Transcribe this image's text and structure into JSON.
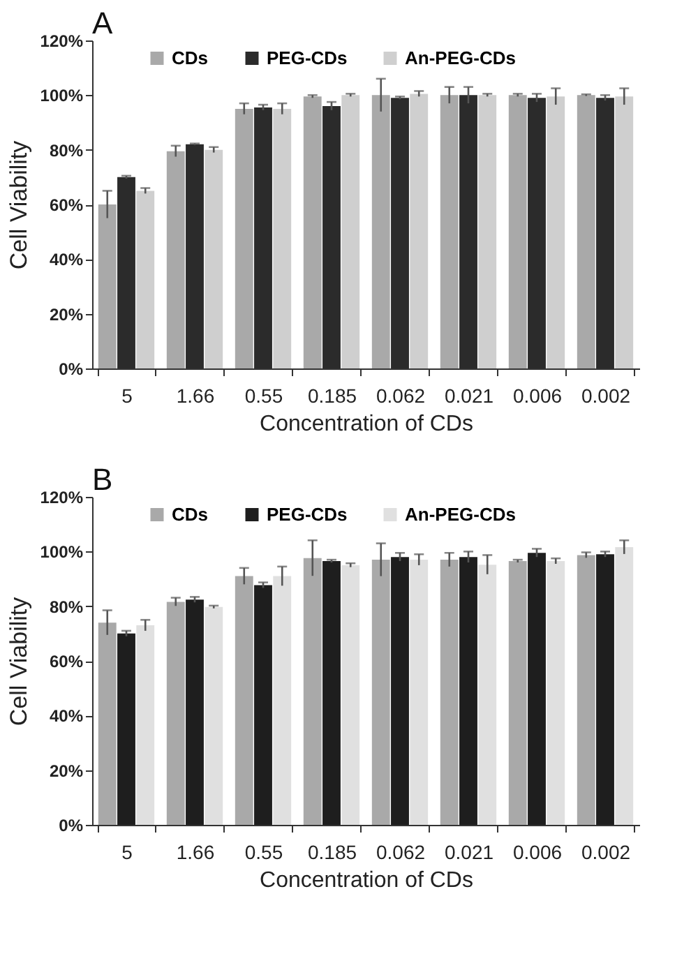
{
  "chart_data": [
    {
      "type": "bar",
      "title": "A",
      "xlabel": "Concentration of CDs",
      "ylabel": "Cell Viability",
      "categories": [
        "5",
        "1.66",
        "0.55",
        "0.185",
        "0.062",
        "0.021",
        "0.006",
        "0.002"
      ],
      "series": [
        {
          "name": "CDs",
          "color": "#a9a9a9",
          "values": [
            60,
            79.5,
            95,
            99.5,
            100,
            100,
            100,
            100
          ],
          "errors": [
            5,
            2,
            2,
            0.5,
            6,
            3,
            0.5,
            0.3
          ]
        },
        {
          "name": "PEG-CDs",
          "color": "#2b2b2b",
          "values": [
            70,
            82,
            95.5,
            96,
            99,
            100,
            99,
            99
          ],
          "errors": [
            0.5,
            0.3,
            1,
            1.5,
            0.5,
            3,
            1.5,
            1
          ]
        },
        {
          "name": "An-PEG-CDs",
          "color": "#cfcfcf",
          "values": [
            65,
            80,
            95,
            100,
            100.5,
            100,
            99.5,
            99.5
          ],
          "errors": [
            1,
            1,
            2,
            0.5,
            1,
            0.5,
            3,
            3
          ]
        }
      ],
      "ylim": [
        0,
        120
      ],
      "yticks": [
        {
          "value": 0,
          "label": "0%"
        },
        {
          "value": 20,
          "label": "20%"
        },
        {
          "value": 40,
          "label": "40%"
        },
        {
          "value": 60,
          "label": "60%"
        },
        {
          "value": 80,
          "label": "80%"
        },
        {
          "value": 100,
          "label": "100%"
        },
        {
          "value": 120,
          "label": "120%"
        }
      ],
      "grid": false,
      "legend": "top"
    },
    {
      "type": "bar",
      "title": "B",
      "xlabel": "Concentration of CDs",
      "ylabel": "Cell Viability",
      "categories": [
        "5",
        "1.66",
        "0.55",
        "0.185",
        "0.062",
        "0.021",
        "0.006",
        "0.002"
      ],
      "series": [
        {
          "name": "CDs",
          "color": "#a9a9a9",
          "values": [
            74,
            81.6,
            91,
            97.6,
            97,
            97,
            96.5,
            98.7
          ],
          "errors": [
            4.5,
            1.5,
            3,
            6.5,
            6,
            2.5,
            0.5,
            1
          ]
        },
        {
          "name": "PEG-CDs",
          "color": "#1e1e1e",
          "values": [
            70,
            82.4,
            87.7,
            96.5,
            98,
            98,
            99.5,
            99
          ],
          "errors": [
            1,
            1,
            1,
            0.5,
            1.5,
            2,
            1.5,
            1
          ]
        },
        {
          "name": "An-PEG-CDs",
          "color": "#e0e0e0",
          "values": [
            73,
            79.7,
            91,
            95,
            97,
            95.2,
            96.5,
            101.6
          ],
          "errors": [
            2,
            0.5,
            3.5,
            0.7,
            2,
            3.5,
            1,
            2.5
          ]
        }
      ],
      "ylim": [
        0,
        120
      ],
      "yticks": [
        {
          "value": 0,
          "label": "0%"
        },
        {
          "value": 20,
          "label": "20%"
        },
        {
          "value": 40,
          "label": "40%"
        },
        {
          "value": 60,
          "label": "60%"
        },
        {
          "value": 80,
          "label": "80%"
        },
        {
          "value": 100,
          "label": "100%"
        },
        {
          "value": 120,
          "label": "120%"
        }
      ],
      "grid": false,
      "legend": "top"
    }
  ]
}
